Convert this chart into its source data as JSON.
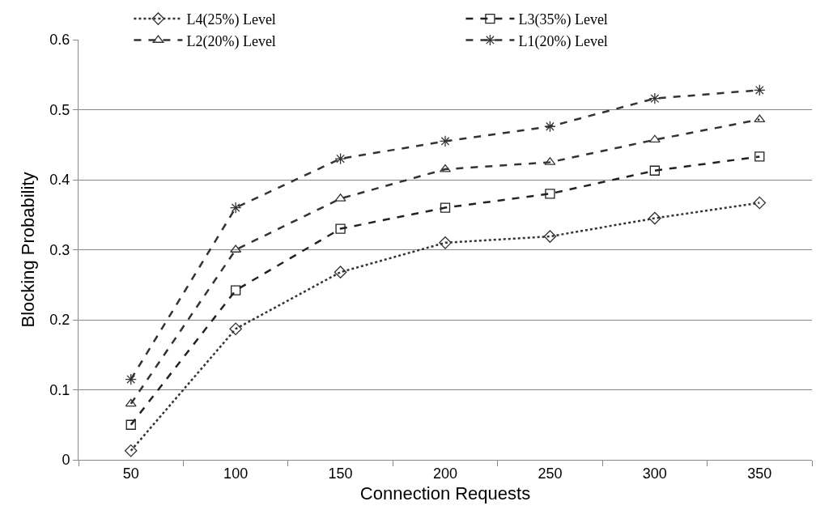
{
  "chart_data": {
    "type": "line",
    "xlabel": "Connection Requests",
    "ylabel": "Blocking Probability",
    "categories": [
      "50",
      "100",
      "150",
      "200",
      "250",
      "300",
      "350"
    ],
    "series": [
      {
        "name": "L4(25%) Level",
        "color": "#333333",
        "marker": "diamond",
        "line_style": "dotted",
        "values": [
          0.013,
          0.187,
          0.268,
          0.31,
          0.319,
          0.345,
          0.367
        ]
      },
      {
        "name": "L3(35%) Level",
        "color": "#222222",
        "marker": "square",
        "line_style": "dashed",
        "values": [
          0.05,
          0.242,
          0.33,
          0.36,
          0.38,
          0.413,
          0.433
        ]
      },
      {
        "name": "L2(20%) Level",
        "color": "#333333",
        "marker": "triangle",
        "line_style": "dashed",
        "values": [
          0.08,
          0.3,
          0.373,
          0.415,
          0.425,
          0.457,
          0.486
        ]
      },
      {
        "name": "L1(20%) Level",
        "color": "#333333",
        "marker": "cross",
        "line_style": "dashed",
        "values": [
          0.115,
          0.36,
          0.43,
          0.455,
          0.476,
          0.516,
          0.528
        ]
      }
    ],
    "ylim": [
      0,
      0.6
    ],
    "yticks": [
      0,
      0.1,
      0.2,
      0.3,
      0.4,
      0.5,
      0.6
    ],
    "grid": "y",
    "legend": "top"
  }
}
